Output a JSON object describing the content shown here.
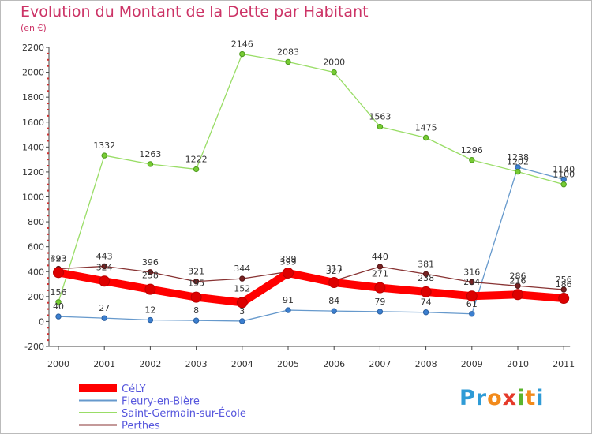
{
  "chart_data": {
    "type": "line",
    "title": "Evolution du Montant de la Dette par Habitant",
    "subtitle": "(en €)",
    "xlabel": "",
    "ylabel": "",
    "x": [
      "2000",
      "2001",
      "2002",
      "2003",
      "2004",
      "2005",
      "2006",
      "2007",
      "2008",
      "2009",
      "2010",
      "2011"
    ],
    "ylim": [
      -200,
      2200
    ],
    "yticks": [
      -200,
      0,
      200,
      400,
      600,
      800,
      1000,
      1200,
      1400,
      1600,
      1800,
      2000,
      2200
    ],
    "grid": false,
    "legend_position": "bottom-left",
    "series": [
      {
        "name": "CéLY",
        "color": "#ff0000",
        "values": [
          393,
          324,
          258,
          195,
          152,
          389,
          313,
          271,
          238,
          204,
          216,
          186
        ]
      },
      {
        "name": "Fleury-en-Bière",
        "color": "#6699cc",
        "values": [
          40,
          27,
          12,
          8,
          3,
          91,
          84,
          79,
          74,
          61,
          1238,
          1140
        ]
      },
      {
        "name": "Saint-Germain-sur-École",
        "color": "#99dd66",
        "values": [
          156,
          1332,
          1263,
          1222,
          2146,
          2083,
          2000,
          1563,
          1475,
          1296,
          1202,
          1100
        ]
      },
      {
        "name": "Perthes",
        "color": "#883333",
        "values": [
          423,
          443,
          396,
          321,
          344,
          399,
          327,
          440,
          381,
          316,
          286,
          256
        ]
      }
    ]
  },
  "logo": {
    "p1": "Pr",
    "p2": "o",
    "p3": "x",
    "p4": "i",
    "p5": "t",
    "p6": "i"
  }
}
